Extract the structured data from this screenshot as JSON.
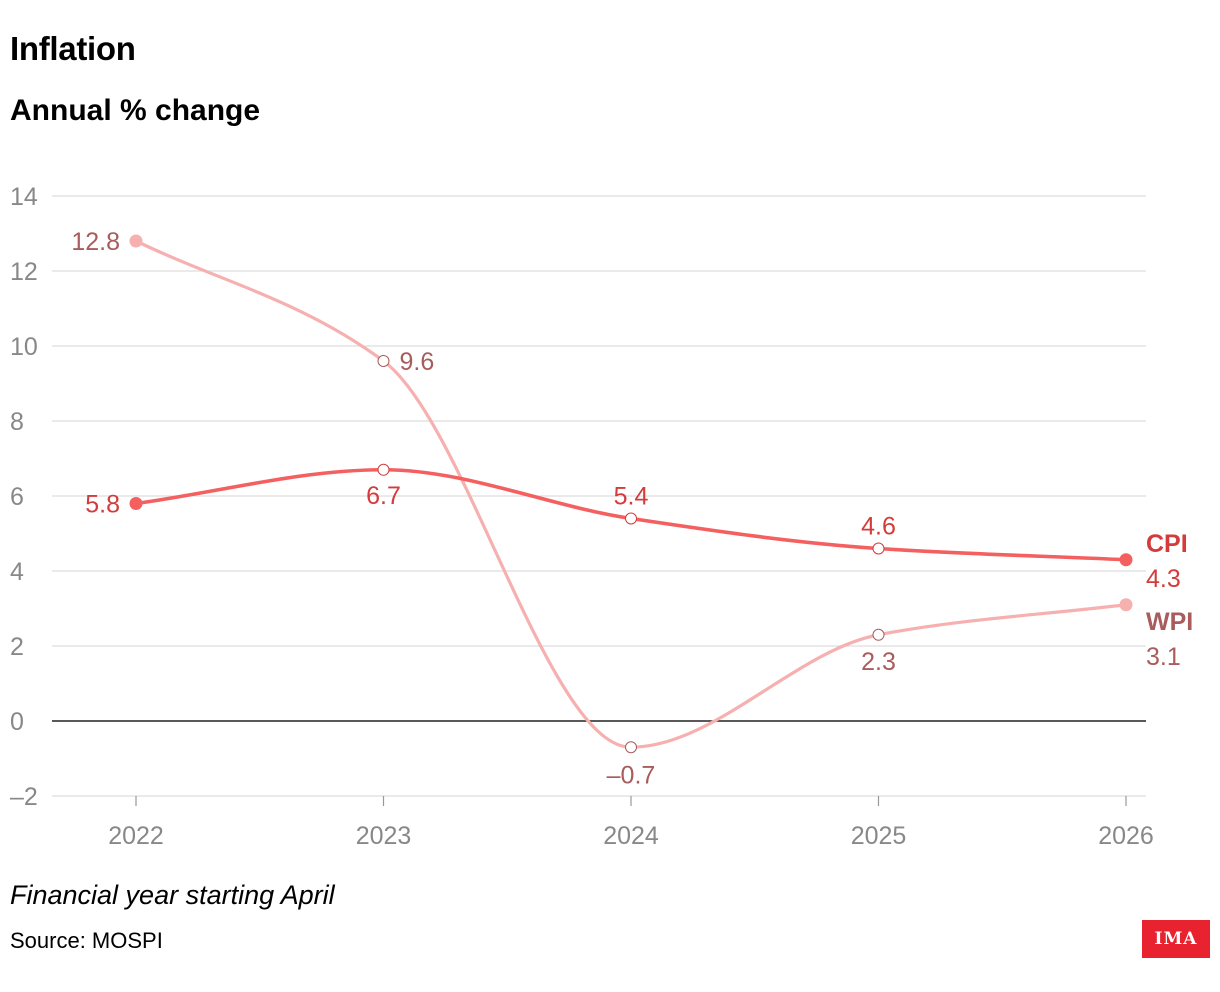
{
  "header": {
    "title": "Inflation",
    "subtitle": "Annual % change"
  },
  "footer": {
    "note": "Financial year starting April",
    "source": "Source: MOSPI",
    "logo_text": "IMA"
  },
  "colors": {
    "cpi": "#f46060",
    "wpi": "#f7b0b0",
    "cpi_label": "#d43b3b",
    "wpi_label": "#a85c5c",
    "grid": "#dddddd",
    "zero_line": "#222222",
    "tick_text": "#888888",
    "logo_bg": "#e8232f"
  },
  "chart_data": {
    "type": "line",
    "title": "Inflation",
    "subtitle": "Annual % change",
    "xlabel": "",
    "ylabel": "",
    "x": [
      2022,
      2023,
      2024,
      2025,
      2026
    ],
    "x_tick_labels": [
      "2022",
      "2023",
      "2024",
      "2025",
      "2026"
    ],
    "ylim": [
      -2,
      14
    ],
    "y_ticks": [
      -2,
      0,
      2,
      4,
      6,
      8,
      10,
      12,
      14
    ],
    "y_tick_labels": [
      "–2",
      "0",
      "2",
      "4",
      "6",
      "8",
      "10",
      "12",
      "14"
    ],
    "grid": true,
    "legend": "direct labels at line ends",
    "series": [
      {
        "name": "CPI",
        "values": [
          5.8,
          6.7,
          5.4,
          4.6,
          4.3
        ],
        "value_labels": [
          "5.8",
          "6.7",
          "5.4",
          "4.6",
          "4.3"
        ]
      },
      {
        "name": "WPI",
        "values": [
          12.8,
          9.6,
          -0.7,
          2.3,
          3.1
        ],
        "value_labels": [
          "12.8",
          "9.6",
          "–0.7",
          "2.3",
          "3.1"
        ]
      }
    ]
  }
}
